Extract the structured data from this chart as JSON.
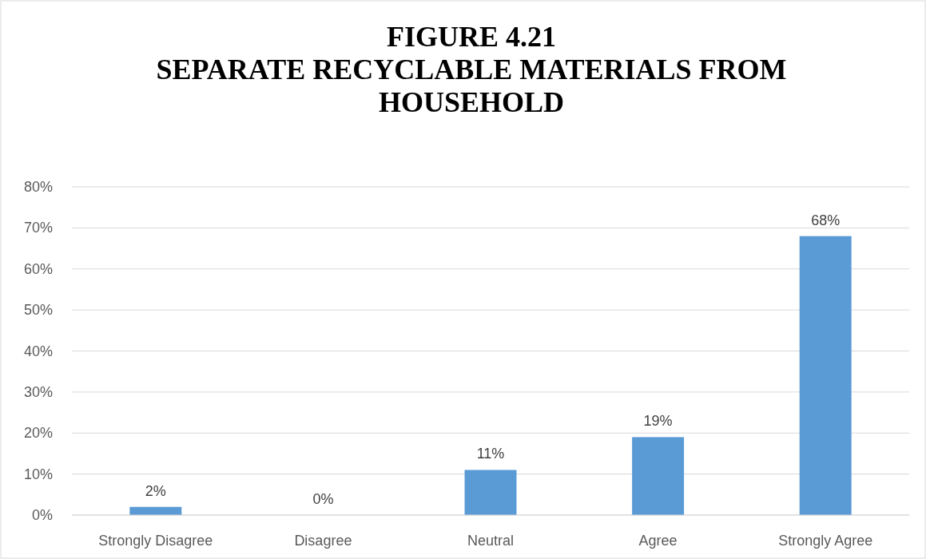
{
  "chart_data": {
    "type": "bar",
    "title": "FIGURE 4.21\nSEPARATE RECYCLABLE MATERIALS FROM\nHOUSEHOLD",
    "categories": [
      "Strongly Disagree",
      "Disagree",
      "Neutral",
      "Agree",
      "Strongly Agree"
    ],
    "values": [
      2,
      0,
      11,
      19,
      68
    ],
    "color": "#5b9bd5",
    "ylim": [
      0,
      80
    ],
    "yticks": [
      {
        "value": 0,
        "label": "0%"
      },
      {
        "value": 10,
        "label": "10%"
      },
      {
        "value": 20,
        "label": "20%"
      },
      {
        "value": 30,
        "label": "30%"
      },
      {
        "value": 40,
        "label": "40%"
      },
      {
        "value": 50,
        "label": "50%"
      },
      {
        "value": 60,
        "label": "60%"
      },
      {
        "value": 70,
        "label": "70%"
      },
      {
        "value": 80,
        "label": "80%"
      }
    ],
    "value_labels": [
      "2%",
      "0%",
      "11%",
      "19%",
      "68%"
    ],
    "grid": "y"
  }
}
